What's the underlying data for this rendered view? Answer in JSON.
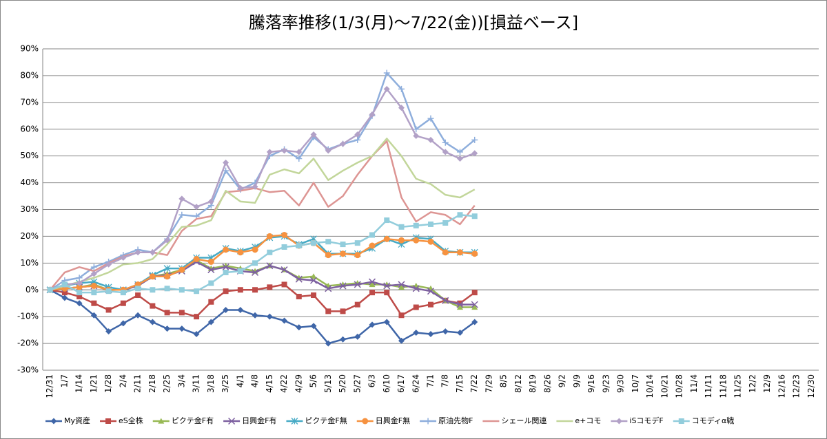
{
  "chart_data": {
    "type": "line",
    "title": "騰落率推移(1/3(月)～7/22(金))[損益ベース]",
    "categories": [
      "12/31",
      "1/7",
      "1/14",
      "1/21",
      "1/28",
      "2/4",
      "2/11",
      "2/18",
      "2/25",
      "3/4",
      "3/11",
      "3/18",
      "3/25",
      "4/1",
      "4/8",
      "4/15",
      "4/22",
      "4/29",
      "5/6",
      "5/13",
      "5/20",
      "5/27",
      "6/3",
      "6/10",
      "6/17",
      "6/24",
      "7/1",
      "7/8",
      "7/15",
      "7/22",
      "7/29",
      "8/5",
      "8/12",
      "8/19",
      "8/26",
      "9/2",
      "9/9",
      "9/16",
      "9/23",
      "9/30",
      "10/7",
      "10/14",
      "10/21",
      "10/28",
      "11/4",
      "11/11",
      "11/18",
      "11/25",
      "12/2",
      "12/9",
      "12/16",
      "12/23",
      "12/30"
    ],
    "ylim": [
      -30,
      90
    ],
    "yticks": [
      {
        "value": -30,
        "label": "-30%"
      },
      {
        "value": -20,
        "label": "-20%"
      },
      {
        "value": -10,
        "label": "-10%"
      },
      {
        "value": 0,
        "label": "0%"
      },
      {
        "value": 10,
        "label": "10%"
      },
      {
        "value": 20,
        "label": "20%"
      },
      {
        "value": 30,
        "label": "30%"
      },
      {
        "value": 40,
        "label": "40%"
      },
      {
        "value": 50,
        "label": "50%"
      },
      {
        "value": 60,
        "label": "60%"
      },
      {
        "value": 70,
        "label": "70%"
      },
      {
        "value": 80,
        "label": "80%"
      },
      {
        "value": 90,
        "label": "90%"
      }
    ],
    "grid": true,
    "legend": "bottom",
    "series": [
      {
        "name": "My資産",
        "color": "#3f66a8",
        "marker": "diamond",
        "values": [
          0,
          -3,
          -5,
          -9.5,
          -15.5,
          -12.5,
          -9.5,
          -12,
          -14.5,
          -14.5,
          -16.5,
          -12,
          -7.5,
          -7.5,
          -9.5,
          -10,
          -11.5,
          -14,
          -13.5,
          -20,
          -18.5,
          -17.5,
          -13,
          -12,
          -19,
          -16,
          -16.5,
          -15.5,
          -16,
          -12,
          null,
          null,
          null,
          null,
          null,
          null,
          null,
          null,
          null,
          null,
          null,
          null,
          null,
          null,
          null,
          null,
          null,
          null,
          null,
          null,
          null,
          null,
          null
        ]
      },
      {
        "name": "eS全株",
        "color": "#be4b48",
        "marker": "square",
        "values": [
          0,
          -1,
          -2.5,
          -5,
          -7.5,
          -5,
          -2,
          -6,
          -8.5,
          -8.5,
          -10,
          -4.5,
          -0.5,
          0,
          0,
          1,
          2,
          -2.5,
          -2,
          -8,
          -8,
          -5.5,
          -1,
          -1,
          -9.5,
          -6.5,
          -5.5,
          -4,
          -5,
          -1,
          null,
          null,
          null,
          null,
          null,
          null,
          null,
          null,
          null,
          null,
          null,
          null,
          null,
          null,
          null,
          null,
          null,
          null,
          null,
          null,
          null,
          null,
          null
        ]
      },
      {
        "name": "ピクテ金F有",
        "color": "#98b954",
        "marker": "triangle",
        "values": [
          0,
          0.5,
          1,
          2,
          0,
          0,
          1.5,
          5,
          6,
          7.5,
          11,
          8,
          9,
          8,
          7,
          9,
          7.5,
          4.5,
          5,
          1.5,
          2,
          2.5,
          2,
          2,
          1,
          1.5,
          0.5,
          -4,
          -6.5,
          -6.5,
          null,
          null,
          null,
          null,
          null,
          null,
          null,
          null,
          null,
          null,
          null,
          null,
          null,
          null,
          null,
          null,
          null,
          null,
          null,
          null,
          null,
          null,
          null
        ]
      },
      {
        "name": "日興金F有",
        "color": "#7d60a0",
        "marker": "x",
        "values": [
          0,
          0.5,
          1,
          1.5,
          0,
          0,
          1.5,
          5,
          5.5,
          7,
          10.5,
          7.5,
          8.5,
          7,
          6.5,
          9,
          7.5,
          4,
          3.5,
          0.5,
          1.5,
          2,
          3,
          1.5,
          2,
          0.5,
          -0.5,
          -4,
          -5.5,
          -5.5,
          null,
          null,
          null,
          null,
          null,
          null,
          null,
          null,
          null,
          null,
          null,
          null,
          null,
          null,
          null,
          null,
          null,
          null,
          null,
          null,
          null,
          null,
          null
        ]
      },
      {
        "name": "ピクテ金F無",
        "color": "#46aac5",
        "marker": "asterisk",
        "values": [
          0,
          1.5,
          2.5,
          3,
          1,
          0,
          2,
          5.5,
          8,
          8,
          12,
          12,
          15.5,
          14.5,
          16,
          19.5,
          20,
          17,
          19,
          13.5,
          13.5,
          13.5,
          15.5,
          19,
          17,
          19.5,
          19,
          14.5,
          14,
          14,
          null,
          null,
          null,
          null,
          null,
          null,
          null,
          null,
          null,
          null,
          null,
          null,
          null,
          null,
          null,
          null,
          null,
          null,
          null,
          null,
          null,
          null,
          null
        ]
      },
      {
        "name": "日興金F無",
        "color": "#f69240",
        "marker": "circle",
        "values": [
          0,
          0.5,
          1,
          1.5,
          0,
          0,
          2,
          5,
          5,
          7.5,
          11.5,
          10.5,
          15,
          14,
          15,
          20,
          20.5,
          16.5,
          17.5,
          13,
          13.5,
          13,
          16.5,
          19,
          18.5,
          18.5,
          18,
          14,
          14,
          13.5,
          null,
          null,
          null,
          null,
          null,
          null,
          null,
          null,
          null,
          null,
          null,
          null,
          null,
          null,
          null,
          null,
          null,
          null,
          null,
          null,
          null,
          null,
          null
        ]
      },
      {
        "name": "原油先物F",
        "color": "#8eaedc",
        "marker": "plus",
        "values": [
          0,
          3.5,
          4.5,
          8.5,
          10.5,
          13,
          15,
          14,
          19,
          28,
          27.5,
          31.5,
          44.5,
          37.5,
          40,
          50,
          52.5,
          49,
          57,
          52.5,
          54.5,
          56,
          65,
          81,
          75,
          60,
          64,
          55,
          51.5,
          56,
          null,
          null,
          null,
          null,
          null,
          null,
          null,
          null,
          null,
          null,
          null,
          null,
          null,
          null,
          null,
          null,
          null,
          null,
          null,
          null,
          null,
          null,
          null
        ]
      },
      {
        "name": "シェール関連",
        "color": "#dd9593",
        "marker": "none",
        "values": [
          0,
          6.5,
          8.5,
          7,
          10,
          12.5,
          14,
          14,
          13,
          22,
          26.5,
          27.5,
          36.5,
          37,
          38,
          36.5,
          37,
          31.5,
          40,
          31,
          35,
          43,
          50,
          55.5,
          34.5,
          25.5,
          29,
          28,
          24.5,
          31.5,
          null,
          null,
          null,
          null,
          null,
          null,
          null,
          null,
          null,
          null,
          null,
          null,
          null,
          null,
          null,
          null,
          null,
          null,
          null,
          null,
          null,
          null,
          null
        ]
      },
      {
        "name": "e+コモ",
        "color": "#c2d69a",
        "marker": "none",
        "values": [
          0,
          1.5,
          3,
          4.5,
          6.5,
          9.5,
          10,
          11.5,
          17,
          23.5,
          24,
          26,
          37,
          33,
          32.5,
          43,
          45,
          43.5,
          49,
          41,
          44.5,
          47.5,
          50,
          56.5,
          50,
          41.5,
          39.5,
          35.5,
          34.5,
          37.5,
          null,
          null,
          null,
          null,
          null,
          null,
          null,
          null,
          null,
          null,
          null,
          null,
          null,
          null,
          null,
          null,
          null,
          null,
          null,
          null,
          null,
          null,
          null
        ]
      },
      {
        "name": "iSコモデF",
        "color": "#b2a1c7",
        "marker": "diamond",
        "values": [
          0,
          2,
          2.5,
          6,
          9.5,
          12,
          14,
          14,
          18.5,
          34,
          31,
          33,
          47.5,
          38,
          38.5,
          51.5,
          52,
          51.5,
          58,
          52,
          54.5,
          58,
          65.5,
          75,
          68,
          57.5,
          56,
          51.5,
          49,
          51,
          null,
          null,
          null,
          null,
          null,
          null,
          null,
          null,
          null,
          null,
          null,
          null,
          null,
          null,
          null,
          null,
          null,
          null,
          null,
          null,
          null,
          null,
          null
        ]
      },
      {
        "name": "コモディα戦",
        "color": "#92cddc",
        "marker": "square",
        "values": [
          0,
          2,
          -1,
          -1,
          -0.5,
          -1,
          0.5,
          0,
          0.5,
          0,
          -0.5,
          2.5,
          6.5,
          7,
          10,
          14,
          16,
          16.5,
          17.5,
          18,
          17,
          17.5,
          20.5,
          26,
          23.5,
          24,
          24.5,
          25,
          28,
          27.5,
          null,
          null,
          null,
          null,
          null,
          null,
          null,
          null,
          null,
          null,
          null,
          null,
          null,
          null,
          null,
          null,
          null,
          null,
          null,
          null,
          null,
          null,
          null
        ]
      }
    ]
  }
}
